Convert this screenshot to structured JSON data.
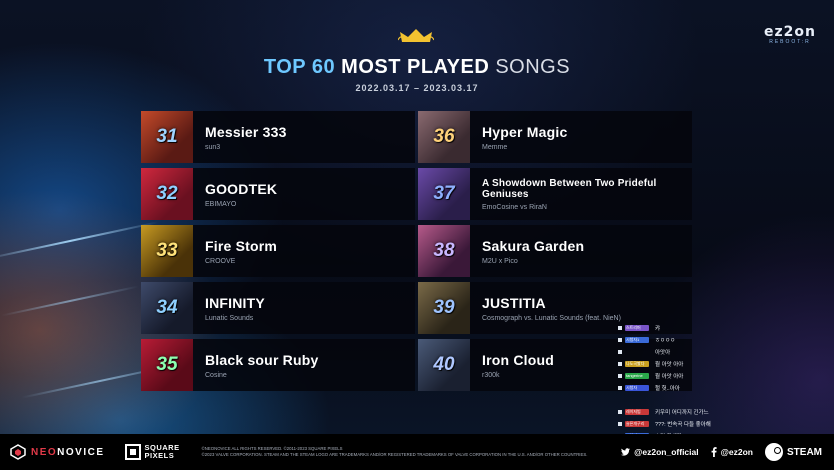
{
  "header": {
    "title_accent": "TOP 60",
    "title_main": "MOST PLAYED",
    "title_light": "SONGS",
    "date_range": "2022.03.17 – 2023.03.17",
    "crown_icon": "crown-icon"
  },
  "brand_logo": {
    "main": "ez2on",
    "sub": "REBOOT:R"
  },
  "songs": [
    {
      "rank": "31",
      "title": "Messier 333",
      "artist": "sun3",
      "rank_color": "#9fd4ff",
      "thumb_color": "#5a1a14",
      "thumb_color2": "#c44a2a"
    },
    {
      "rank": "32",
      "title": "GOODTEK",
      "artist": "EBIMAYO",
      "rank_color": "#8fd0ff",
      "thumb_color": "#6a1020",
      "thumb_color2": "#d0283e"
    },
    {
      "rank": "33",
      "title": "Fire Storm",
      "artist": "CROOVE",
      "rank_color": "#ffe27a",
      "thumb_color": "#4a3208",
      "thumb_color2": "#c79a22"
    },
    {
      "rank": "34",
      "title": "INFINITY",
      "artist": "Lunatic Sounds",
      "rank_color": "#8fd0ff",
      "thumb_color": "#151a2a",
      "thumb_color2": "#3e4a6a"
    },
    {
      "rank": "35",
      "title": "Black sour Ruby",
      "artist": "Cosine",
      "rank_color": "#8dffb0",
      "thumb_color": "#5a0a18",
      "thumb_color2": "#b81c36"
    },
    {
      "rank": "36",
      "title": "Hyper Magic",
      "artist": "Memme",
      "rank_color": "#ffd27a",
      "thumb_color": "#3a2a30",
      "thumb_color2": "#8a6a70"
    },
    {
      "rank": "37",
      "title": "A Showdown Between Two Prideful Geniuses",
      "artist": "EmoCosine vs RiraN",
      "rank_color": "#8fb0ff",
      "thumb_color": "#2a1e4a",
      "thumb_color2": "#6a4aa8"
    },
    {
      "rank": "38",
      "title": "Sakura Garden",
      "artist": "M2U x Pico",
      "rank_color": "#c9b8ff",
      "thumb_color": "#3a1838",
      "thumb_color2": "#b65a8a"
    },
    {
      "rank": "39",
      "title": "JUSTITIA",
      "artist": "Cosmograph vs. Lunatic Sounds (feat. NieN)",
      "rank_color": "#9fc4ff",
      "thumb_color": "#2a2418",
      "thumb_color2": "#7a6a48"
    },
    {
      "rank": "40",
      "title": "Iron Cloud",
      "artist": "r300k",
      "rank_color": "#b0c8ff",
      "thumb_color": "#1a2030",
      "thumb_color2": "#4a5a78"
    }
  ],
  "chat": [
    {
      "user": "스트리머",
      "msg": "캬",
      "user_color": "#7a55c8"
    },
    {
      "user": "시청자1",
      "msg": "ㅎㅇㅇㅇ",
      "user_color": "#3a6ad8"
    },
    {
      "user": "",
      "msg": "아앗아",
      "user_color": "#00000000"
    },
    {
      "user": "나도곡봤다",
      "msg": "뭘 아앗 아아",
      "user_color": "#c8a020"
    },
    {
      "user": "tangerine",
      "msg": "뭘 아앗 아아",
      "user_color": "#2aa84a"
    },
    {
      "user": "시청자",
      "msg": "헐 헛..아아",
      "user_color": "#3a55d8"
    },
    {
      "user": "",
      "msg": "",
      "user_color": "#00000000"
    },
    {
      "user": "레이저빔",
      "msg": "키우미 어디까지 긴가느",
      "user_color": "#c83838"
    },
    {
      "user": "슬픈개구리",
      "msg": "???: 번속곡 다들 좋아해",
      "user_color": "#c83838"
    },
    {
      "user": "시청자",
      "msg": "소리 빡세다",
      "user_color": "#3a6ad8"
    }
  ],
  "footer": {
    "neon_a": "NEO",
    "neon_b": "NOVICE",
    "square_line1": "SQUARE",
    "square_line2": "PIXELS",
    "legal_line1": "©NEONOVICE ALL RIGHTS RESERVED. ©2011-2023 SQUARE PIXELS",
    "legal_line2": "©2023 VALVE CORPORATION. STEAM AND THE STEAM LOGO ARE TRADEMARKS AND/OR REGISTERED TRADEMARKS OF VALVE CORPORATION IN THE U.S. AND/OR OTHER COUNTRIES.",
    "twitter_handle": "@ez2on_official",
    "facebook_handle": "@ez2on",
    "steam_label": "STEAM"
  }
}
